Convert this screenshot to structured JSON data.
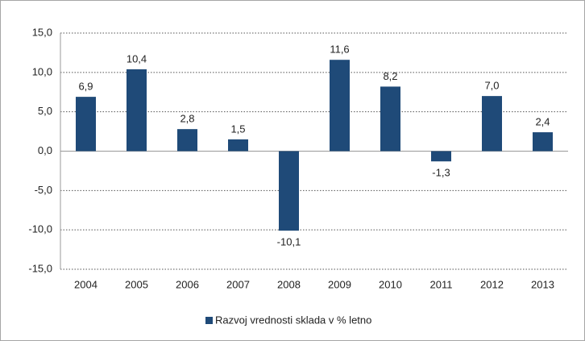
{
  "chart_data": {
    "type": "bar",
    "categories": [
      "2004",
      "2005",
      "2006",
      "2007",
      "2008",
      "2009",
      "2010",
      "2011",
      "2012",
      "2013"
    ],
    "series": [
      {
        "name": "Razvoj vrednosti sklada v % letno",
        "color": "#1f4a78",
        "values": [
          6.9,
          10.4,
          2.8,
          1.5,
          -10.1,
          11.6,
          8.2,
          -1.3,
          7.0,
          2.4
        ],
        "value_labels": [
          "6,9",
          "10,4",
          "2,8",
          "1,5",
          "-10,1",
          "11,6",
          "8,2",
          "-1,3",
          "7,0",
          "2,4"
        ]
      }
    ],
    "ylim": [
      -15,
      15
    ],
    "yticks": [
      {
        "value": -15,
        "label": "-15,0"
      },
      {
        "value": -10,
        "label": "-10,0"
      },
      {
        "value": -5,
        "label": "-5,0"
      },
      {
        "value": 0,
        "label": "0,0"
      },
      {
        "value": 5,
        "label": "5,0"
      },
      {
        "value": 10,
        "label": "10,0"
      },
      {
        "value": 15,
        "label": "15,0"
      }
    ],
    "grid": true,
    "legend": "bottom"
  }
}
